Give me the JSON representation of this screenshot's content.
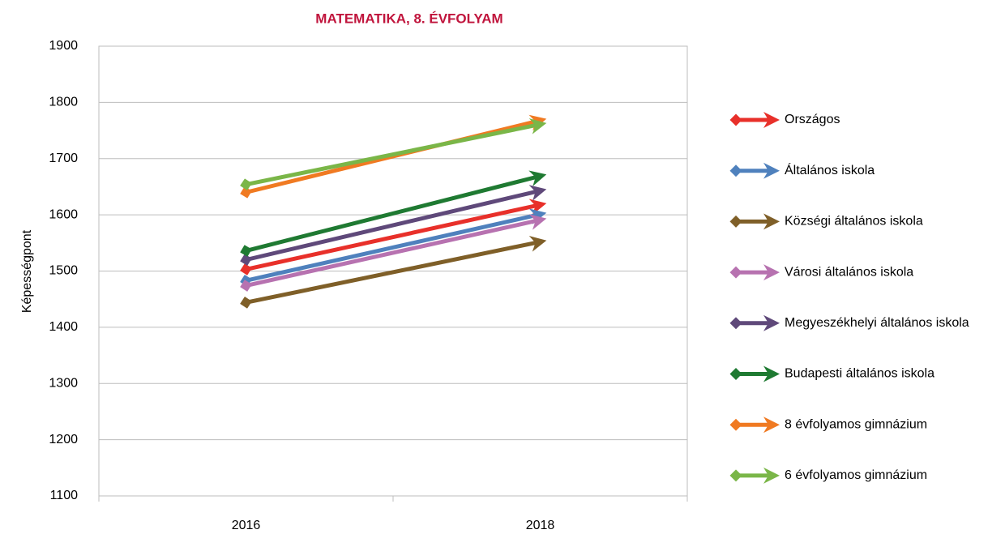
{
  "chart_data": {
    "type": "line",
    "title": "MATEMATIKA, 8. ÉVFOLYAM",
    "y_label": "Képességpont",
    "categories": [
      "2016",
      "2018"
    ],
    "ylim": [
      1100,
      1900
    ],
    "yticks": [
      1100,
      1200,
      1300,
      1400,
      1500,
      1600,
      1700,
      1800,
      1900
    ],
    "grid": true,
    "series": [
      {
        "name": "Országos",
        "color": "#e8302a",
        "values": [
          1503,
          1618
        ]
      },
      {
        "name": "Általános iskola",
        "color": "#4f81bd",
        "values": [
          1483,
          1601
        ]
      },
      {
        "name": "Községi általános iskola",
        "color": "#7f5f28",
        "values": [
          1444,
          1552
        ]
      },
      {
        "name": "Városi általános iskola",
        "color": "#b772b0",
        "values": [
          1474,
          1591
        ]
      },
      {
        "name": "Megyeszékhelyi általános iskola",
        "color": "#5f497a",
        "values": [
          1520,
          1643
        ]
      },
      {
        "name": "Budapesti általános iskola",
        "color": "#1f7a32",
        "values": [
          1536,
          1669
        ]
      },
      {
        "name": "8 évfolyamos gimnázium",
        "color": "#f07a22",
        "values": [
          1640,
          1768
        ]
      },
      {
        "name": "6 évfolyamos gimnázium",
        "color": "#7ab648",
        "values": [
          1654,
          1761
        ]
      }
    ]
  }
}
